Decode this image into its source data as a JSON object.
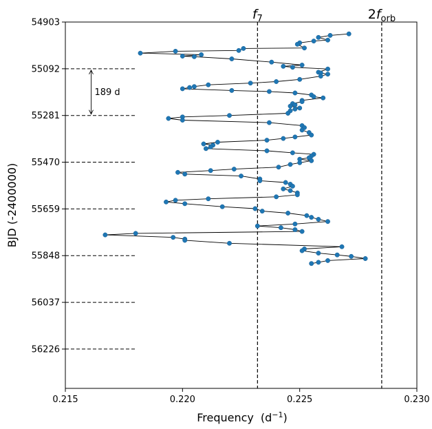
{
  "chart_data": {
    "type": "scatter",
    "title": "",
    "xlabel": "Frequency",
    "xlabel_unit": "(d",
    "xlabel_unit_exp": "−1",
    "xlabel_unit_close": ")",
    "ylabel": "BJD (-2400000)",
    "xlim": [
      0.215,
      0.23
    ],
    "ylim": [
      56385,
      54903
    ],
    "y_inverted": true,
    "grid": false,
    "legend": "none",
    "xticks": [
      {
        "value": 0.215,
        "label": "0.215"
      },
      {
        "value": 0.22,
        "label": "0.220"
      },
      {
        "value": 0.225,
        "label": "0.225"
      },
      {
        "value": 0.23,
        "label": "0.230"
      }
    ],
    "yticks": [
      {
        "value": 54903,
        "label": "54903"
      },
      {
        "value": 55092,
        "label": "55092"
      },
      {
        "value": 55281,
        "label": "55281"
      },
      {
        "value": 55470,
        "label": "55470"
      },
      {
        "value": 55659,
        "label": "55659"
      },
      {
        "value": 55848,
        "label": "55848"
      },
      {
        "value": 56037,
        "label": "56037"
      },
      {
        "value": 56226,
        "label": "56226"
      }
    ],
    "vertical_lines": [
      {
        "x": 0.2232,
        "label_main": "f",
        "label_prefix": "",
        "label_sub": "7"
      },
      {
        "x": 0.2285,
        "label_main": "f",
        "label_prefix": "2",
        "label_sub": "orb"
      }
    ],
    "horizontal_ref_lines": [
      55092,
      55281,
      55470,
      55659,
      55848,
      56037,
      56226
    ],
    "annotation": {
      "text": "189 d",
      "x": 0.2161,
      "y_from": 55092,
      "y_to": 55281
    },
    "series": [
      {
        "marker_color": "#1f77b4",
        "line_color": "#000000",
        "points": [
          [
            0.2271,
            54951
          ],
          [
            0.2263,
            54957
          ],
          [
            0.2258,
            54965
          ],
          [
            0.2262,
            54976
          ],
          [
            0.2256,
            54980
          ],
          [
            0.225,
            54987
          ],
          [
            0.2249,
            54993
          ],
          [
            0.2252,
            55008
          ],
          [
            0.2226,
            55010
          ],
          [
            0.2224,
            55018
          ],
          [
            0.2197,
            55021
          ],
          [
            0.2182,
            55029
          ],
          [
            0.2208,
            55035
          ],
          [
            0.22,
            55041
          ],
          [
            0.2205,
            55043
          ],
          [
            0.2221,
            55052
          ],
          [
            0.2238,
            55065
          ],
          [
            0.2251,
            55077
          ],
          [
            0.2243,
            55082
          ],
          [
            0.2247,
            55086
          ],
          [
            0.2262,
            55093
          ],
          [
            0.2258,
            55106
          ],
          [
            0.2259,
            55109
          ],
          [
            0.2262,
            55114
          ],
          [
            0.2259,
            55122
          ],
          [
            0.225,
            55135
          ],
          [
            0.224,
            55144
          ],
          [
            0.2229,
            55150
          ],
          [
            0.2211,
            55157
          ],
          [
            0.2205,
            55164
          ],
          [
            0.2203,
            55168
          ],
          [
            0.22,
            55173
          ],
          [
            0.2221,
            55180
          ],
          [
            0.2237,
            55184
          ],
          [
            0.2248,
            55190
          ],
          [
            0.2255,
            55198
          ],
          [
            0.2256,
            55205
          ],
          [
            0.226,
            55210
          ],
          [
            0.2251,
            55220
          ],
          [
            0.2251,
            55225
          ],
          [
            0.2247,
            55233
          ],
          [
            0.2248,
            55238
          ],
          [
            0.2246,
            55243
          ],
          [
            0.225,
            55251
          ],
          [
            0.2248,
            55255
          ],
          [
            0.2246,
            55262
          ],
          [
            0.2245,
            55272
          ],
          [
            0.222,
            55281
          ],
          [
            0.22,
            55287
          ],
          [
            0.2194,
            55293
          ],
          [
            0.22,
            55300
          ],
          [
            0.2237,
            55310
          ],
          [
            0.2251,
            55322
          ],
          [
            0.2252,
            55330
          ],
          [
            0.2251,
            55340
          ],
          [
            0.2254,
            55350
          ],
          [
            0.2255,
            55360
          ],
          [
            0.2248,
            55368
          ],
          [
            0.2243,
            55374
          ],
          [
            0.2236,
            55381
          ],
          [
            0.2215,
            55389
          ],
          [
            0.2209,
            55396
          ],
          [
            0.2213,
            55401
          ],
          [
            0.2212,
            55408
          ],
          [
            0.221,
            55415
          ],
          [
            0.2236,
            55424
          ],
          [
            0.2247,
            55432
          ],
          [
            0.2256,
            55438
          ],
          [
            0.2255,
            55445
          ],
          [
            0.2254,
            55452
          ],
          [
            0.225,
            55458
          ],
          [
            0.2255,
            55464
          ],
          [
            0.225,
            55472
          ],
          [
            0.2246,
            55479
          ],
          [
            0.2241,
            55490
          ],
          [
            0.2222,
            55498
          ],
          [
            0.2212,
            55504
          ],
          [
            0.2198,
            55511
          ],
          [
            0.2201,
            55518
          ],
          [
            0.2225,
            55526
          ],
          [
            0.2233,
            55538
          ],
          [
            0.2233,
            55545
          ],
          [
            0.2244,
            55552
          ],
          [
            0.2246,
            55559
          ],
          [
            0.2247,
            55567
          ],
          [
            0.2243,
            55578
          ],
          [
            0.2246,
            55585
          ],
          [
            0.2249,
            55594
          ],
          [
            0.2249,
            55602
          ],
          [
            0.224,
            55610
          ],
          [
            0.2211,
            55618
          ],
          [
            0.2197,
            55624
          ],
          [
            0.2193,
            55631
          ],
          [
            0.2201,
            55638
          ],
          [
            0.2217,
            55650
          ],
          [
            0.2231,
            55658
          ],
          [
            0.2234,
            55668
          ],
          [
            0.2245,
            55676
          ],
          [
            0.2253,
            55686
          ],
          [
            0.2255,
            55693
          ],
          [
            0.2258,
            55701
          ],
          [
            0.2262,
            55710
          ],
          [
            0.2248,
            55720
          ],
          [
            0.2232,
            55728
          ],
          [
            0.2242,
            55735
          ],
          [
            0.2248,
            55743
          ],
          [
            0.2251,
            55750
          ],
          [
            0.218,
            55758
          ],
          [
            0.2167,
            55764
          ],
          [
            0.2196,
            55774
          ],
          [
            0.2201,
            55781
          ],
          [
            0.2201,
            55786
          ],
          [
            0.222,
            55798
          ],
          [
            0.2268,
            55812
          ],
          [
            0.2252,
            55821
          ],
          [
            0.2251,
            55828
          ],
          [
            0.2258,
            55838
          ],
          [
            0.2266,
            55845
          ],
          [
            0.2272,
            55851
          ],
          [
            0.2278,
            55860
          ],
          [
            0.2262,
            55868
          ],
          [
            0.2258,
            55875
          ],
          [
            0.2255,
            55880
          ]
        ]
      }
    ]
  }
}
